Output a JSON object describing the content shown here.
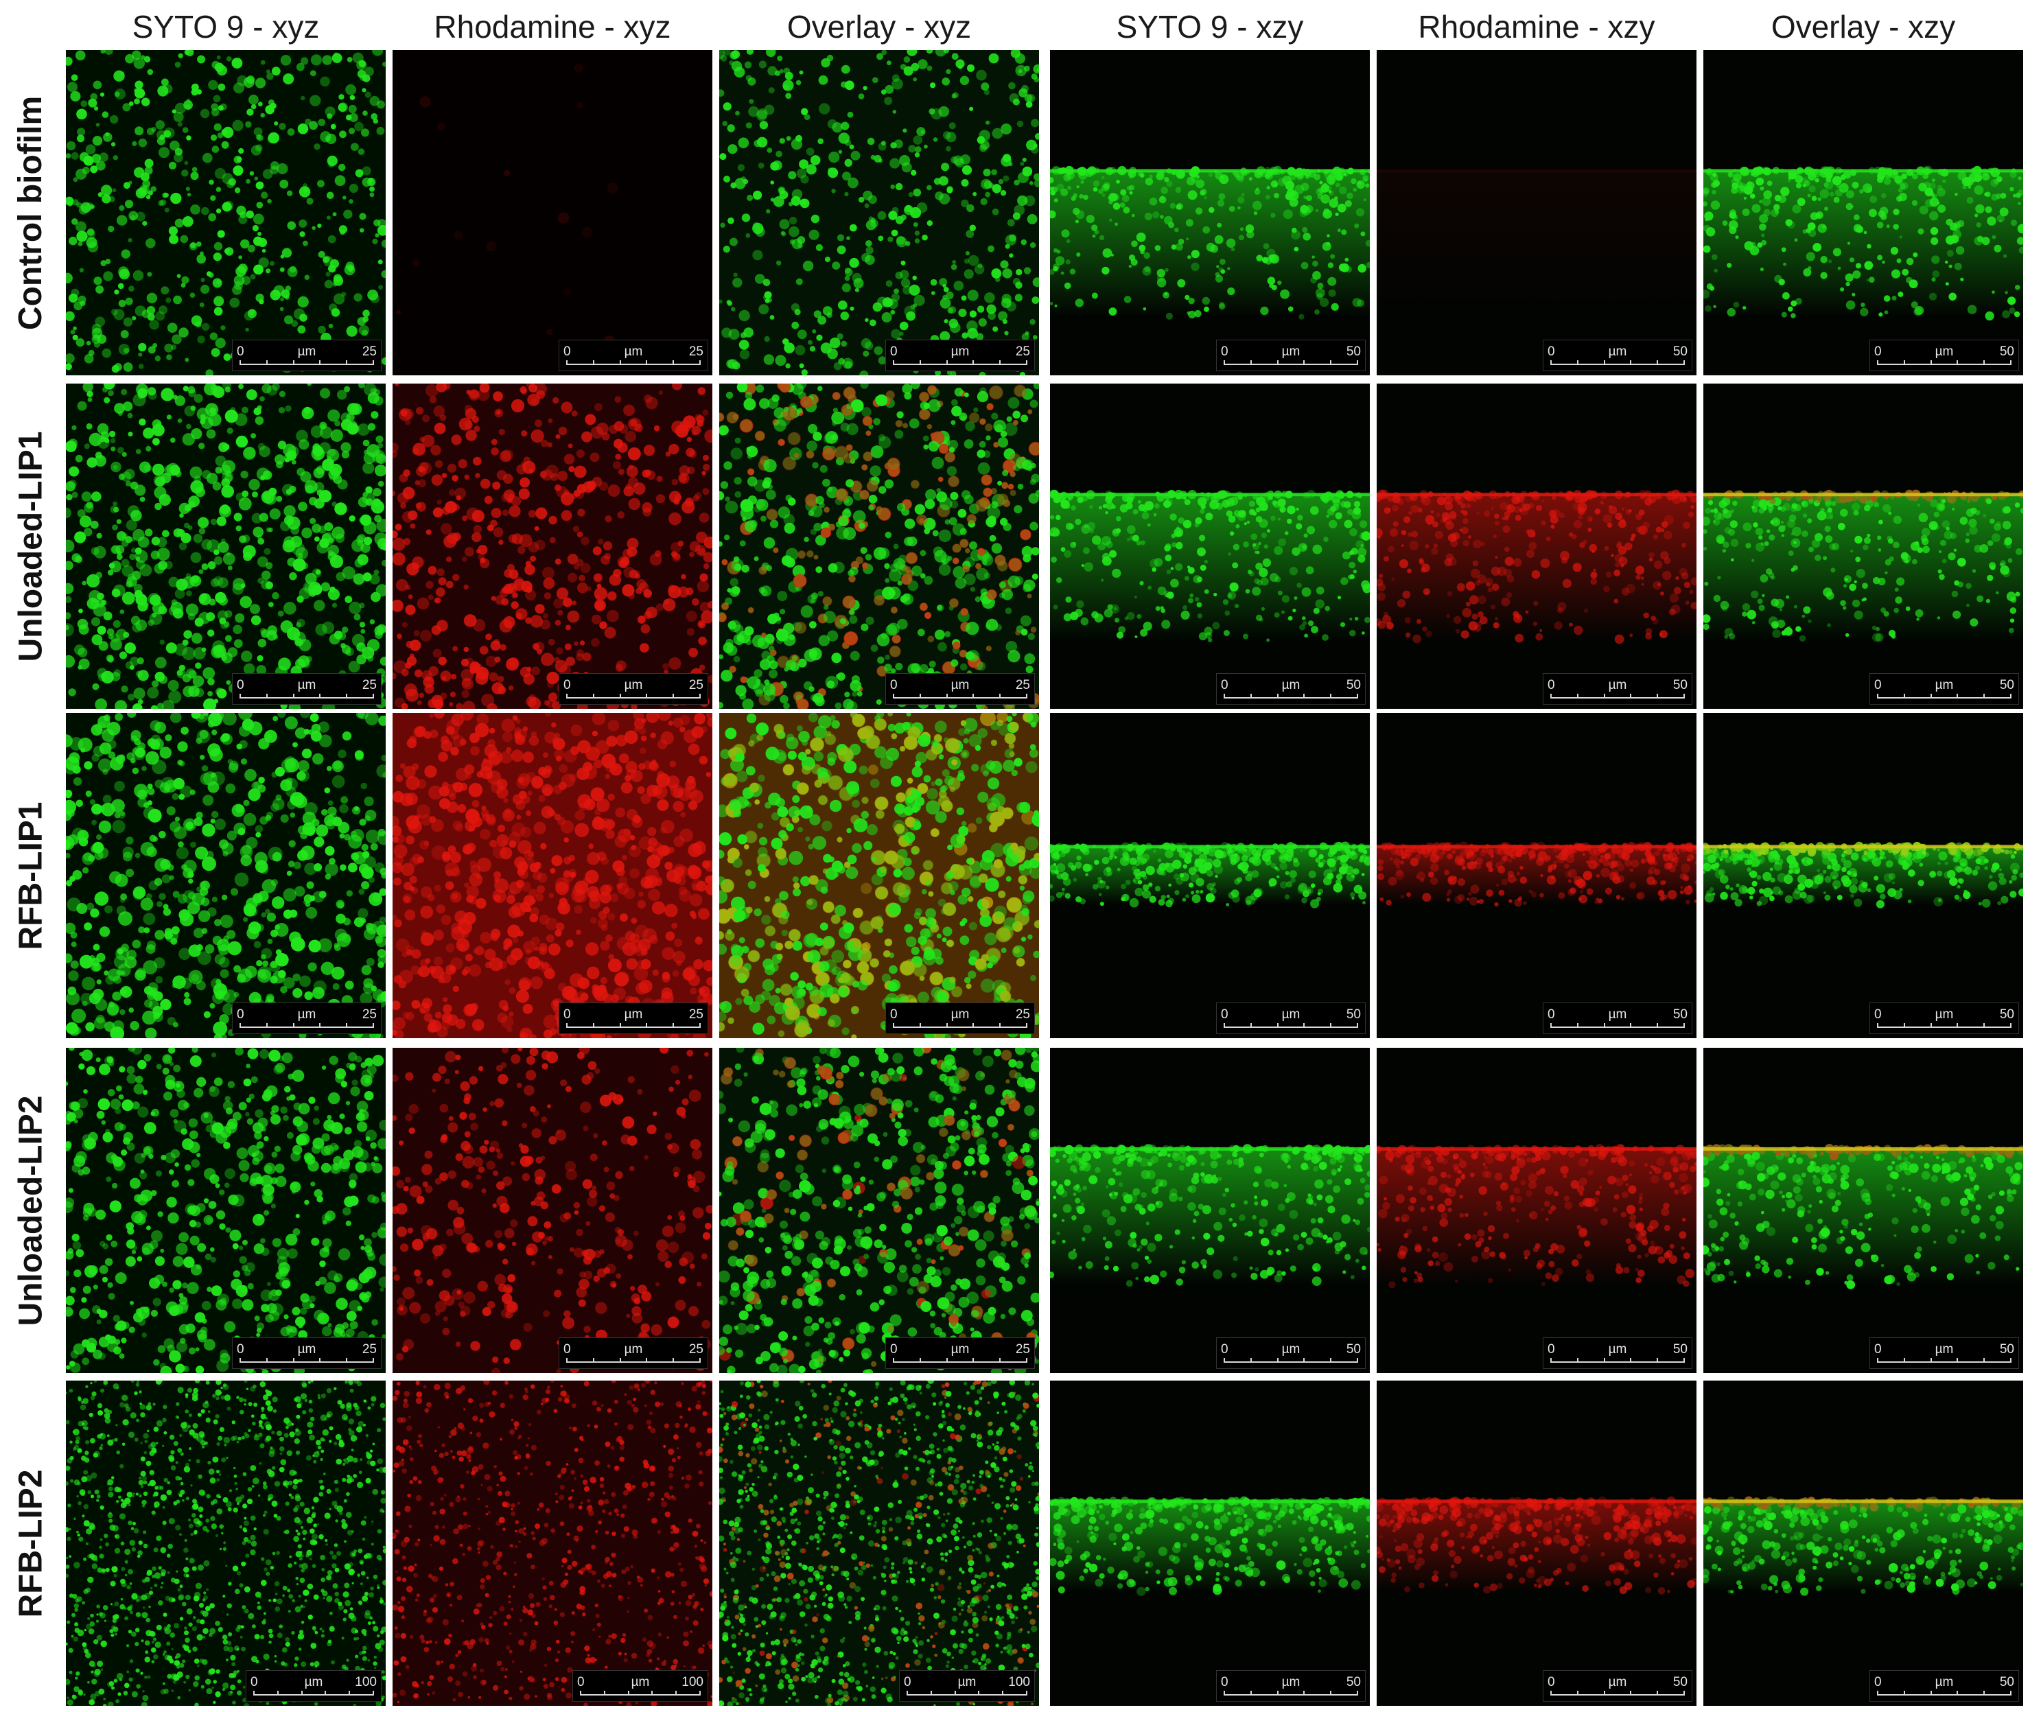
{
  "column_labels": [
    "SYTO 9 - xyz",
    "Rhodamine - xyz",
    "Overlay -  xyz",
    "SYTO 9 - xzy",
    "Rhodamine - xzy",
    "Overlay - xzy"
  ],
  "row_labels": [
    "Control biofilm",
    "Unloaded-LIP1",
    "RFB-LIP1",
    "Unloaded-LIP2",
    "RFB-LIP2"
  ],
  "scale_unit": "µm",
  "scale_start": "0",
  "scale_ends": [
    [
      "25",
      "25",
      "25",
      "50",
      "50",
      "50"
    ],
    [
      "25",
      "25",
      "25",
      "50",
      "50",
      "50"
    ],
    [
      "25",
      "25",
      "25",
      "50",
      "50",
      "50"
    ],
    [
      "25",
      "25",
      "25",
      "50",
      "50",
      "50"
    ],
    [
      "100",
      "100",
      "100",
      "50",
      "50",
      "50"
    ]
  ],
  "colors": {
    "syto9_green": "#22e61c",
    "rhodamine_red": "#e0160e",
    "background": "#000000"
  }
}
